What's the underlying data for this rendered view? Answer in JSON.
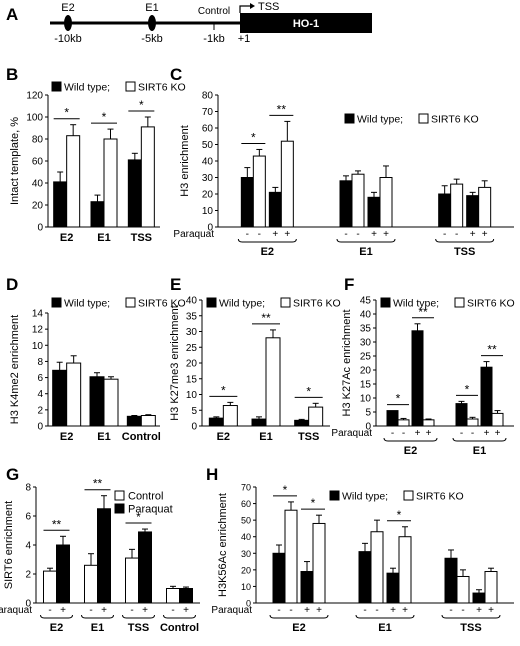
{
  "diagram": {
    "panel_label": "A",
    "elements": [
      "E2",
      "E1",
      "Control"
    ],
    "positions": [
      "-10kb",
      "-5kb",
      "-1kb",
      "+1"
    ],
    "tss_label": "TSS",
    "gene_label": "HO-1"
  },
  "chart_data": [
    {
      "panel": "B",
      "type": "bar",
      "ylabel": "Intact template, %",
      "ylim": [
        0,
        120
      ],
      "yticks": [
        0,
        20,
        40,
        60,
        80,
        100,
        120
      ],
      "legend": [
        "Wild type;",
        "SIRT6 KO"
      ],
      "groups": [
        {
          "label": "E2",
          "bars": [
            {
              "value": 41,
              "err": 9,
              "fill": "black"
            },
            {
              "value": 83,
              "err": 10,
              "fill": "white"
            }
          ]
        },
        {
          "label": "E1",
          "bars": [
            {
              "value": 23,
              "err": 6,
              "fill": "black"
            },
            {
              "value": 80,
              "err": 9,
              "fill": "white"
            }
          ]
        },
        {
          "label": "TSS",
          "bars": [
            {
              "value": 61,
              "err": 6,
              "fill": "black"
            },
            {
              "value": 91,
              "err": 9,
              "fill": "white"
            }
          ]
        }
      ],
      "sig": [
        {
          "from": [
            0,
            0
          ],
          "to": [
            0,
            1
          ],
          "text": "*"
        },
        {
          "from": [
            1,
            0
          ],
          "to": [
            1,
            1
          ],
          "text": "*"
        },
        {
          "from": [
            2,
            0
          ],
          "to": [
            2,
            1
          ],
          "text": "*"
        }
      ]
    },
    {
      "panel": "C",
      "type": "bar",
      "ylabel": "H3 enrichment",
      "ylim": [
        0,
        80
      ],
      "yticks": [
        0,
        10,
        20,
        30,
        40,
        50,
        60,
        70,
        80
      ],
      "legend": [
        "Wild type;",
        "SIRT6 KO"
      ],
      "treatment_label": "Paraquat",
      "groups": [
        {
          "label": "E2",
          "bars": [
            {
              "value": 30,
              "err": 6,
              "fill": "black",
              "treat": "-"
            },
            {
              "value": 43,
              "err": 4,
              "fill": "white",
              "treat": "-"
            },
            {
              "value": 21,
              "err": 3,
              "fill": "black",
              "treat": "+"
            },
            {
              "value": 52,
              "err": 12,
              "fill": "white",
              "treat": "+"
            }
          ]
        },
        {
          "label": "E1",
          "bars": [
            {
              "value": 28,
              "err": 3,
              "fill": "black",
              "treat": "-"
            },
            {
              "value": 32,
              "err": 2,
              "fill": "white",
              "treat": "-"
            },
            {
              "value": 18,
              "err": 3,
              "fill": "black",
              "treat": "+"
            },
            {
              "value": 30,
              "err": 7,
              "fill": "white",
              "treat": "+"
            }
          ]
        },
        {
          "label": "TSS",
          "bars": [
            {
              "value": 20,
              "err": 5,
              "fill": "black",
              "treat": "-"
            },
            {
              "value": 26,
              "err": 3,
              "fill": "white",
              "treat": "-"
            },
            {
              "value": 19,
              "err": 2,
              "fill": "black",
              "treat": "+"
            },
            {
              "value": 24,
              "err": 4,
              "fill": "white",
              "treat": "+"
            }
          ]
        }
      ],
      "sig": [
        {
          "from": [
            0,
            0
          ],
          "to": [
            0,
            1
          ],
          "text": "*"
        },
        {
          "from": [
            0,
            2
          ],
          "to": [
            0,
            3
          ],
          "text": "**"
        }
      ]
    },
    {
      "panel": "D",
      "type": "bar",
      "ylabel": "H3 K4me2  enrichment",
      "ylim": [
        0,
        14
      ],
      "yticks": [
        0,
        2,
        4,
        6,
        8,
        10,
        12,
        14
      ],
      "legend": [
        "Wild type;",
        "SIRT6 KO"
      ],
      "groups": [
        {
          "label": "E2",
          "bars": [
            {
              "value": 6.9,
              "err": 1.0,
              "fill": "black"
            },
            {
              "value": 7.8,
              "err": 0.9,
              "fill": "white"
            }
          ]
        },
        {
          "label": "E1",
          "bars": [
            {
              "value": 6.1,
              "err": 0.5,
              "fill": "black"
            },
            {
              "value": 5.8,
              "err": 0.3,
              "fill": "white"
            }
          ]
        },
        {
          "label": "Control",
          "bars": [
            {
              "value": 1.2,
              "err": 0.1,
              "fill": "black"
            },
            {
              "value": 1.3,
              "err": 0.1,
              "fill": "white"
            }
          ]
        }
      ],
      "sig": []
    },
    {
      "panel": "E",
      "type": "bar",
      "ylabel": "H3 K27me3  enrichment",
      "ylim": [
        0,
        40
      ],
      "yticks": [
        0,
        5,
        10,
        15,
        20,
        25,
        30,
        35,
        40
      ],
      "legend": [
        "Wild type;",
        "SIRT6 KO"
      ],
      "groups": [
        {
          "label": "E2",
          "bars": [
            {
              "value": 2.5,
              "err": 0.4,
              "fill": "black"
            },
            {
              "value": 6.5,
              "err": 1.0,
              "fill": "white"
            }
          ]
        },
        {
          "label": "E1",
          "bars": [
            {
              "value": 2.2,
              "err": 0.7,
              "fill": "black"
            },
            {
              "value": 28,
              "err": 2.5,
              "fill": "white"
            }
          ]
        },
        {
          "label": "TSS",
          "bars": [
            {
              "value": 1.8,
              "err": 0.3,
              "fill": "black"
            },
            {
              "value": 6,
              "err": 1.2,
              "fill": "white"
            }
          ]
        }
      ],
      "sig": [
        {
          "from": [
            0,
            0
          ],
          "to": [
            0,
            1
          ],
          "text": "*"
        },
        {
          "from": [
            1,
            0
          ],
          "to": [
            1,
            1
          ],
          "text": "**"
        },
        {
          "from": [
            2,
            0
          ],
          "to": [
            2,
            1
          ],
          "text": "*"
        }
      ]
    },
    {
      "panel": "F",
      "type": "bar",
      "ylabel": "H3 K27Ac  enrichment",
      "ylim": [
        0,
        45
      ],
      "yticks": [
        0,
        5,
        10,
        15,
        20,
        25,
        30,
        35,
        40,
        45
      ],
      "legend": [
        "Wild type;",
        "SIRT6 KO"
      ],
      "treatment_label": "Paraquat",
      "groups": [
        {
          "label": "E2",
          "bars": [
            {
              "value": 5.5,
              "err": 0,
              "fill": "black",
              "treat": "-"
            },
            {
              "value": 2.2,
              "err": 0.5,
              "fill": "white",
              "treat": "-"
            },
            {
              "value": 34,
              "err": 2.5,
              "fill": "black",
              "treat": "+"
            },
            {
              "value": 2.2,
              "err": 0.3,
              "fill": "white",
              "treat": "+"
            }
          ]
        },
        {
          "label": "E1",
          "bars": [
            {
              "value": 8,
              "err": 0.8,
              "fill": "black",
              "treat": "-"
            },
            {
              "value": 2.5,
              "err": 0.6,
              "fill": "white",
              "treat": "-"
            },
            {
              "value": 21,
              "err": 2,
              "fill": "black",
              "treat": "+"
            },
            {
              "value": 4.5,
              "err": 1,
              "fill": "white",
              "treat": "+"
            }
          ]
        }
      ],
      "sig": [
        {
          "from": [
            0,
            0
          ],
          "to": [
            0,
            1
          ],
          "text": "*"
        },
        {
          "from": [
            0,
            2
          ],
          "to": [
            0,
            3
          ],
          "text": "**"
        },
        {
          "from": [
            1,
            0
          ],
          "to": [
            1,
            1
          ],
          "text": "*"
        },
        {
          "from": [
            1,
            2
          ],
          "to": [
            1,
            3
          ],
          "text": "**"
        }
      ]
    },
    {
      "panel": "G",
      "type": "bar",
      "ylabel": "SIRT6  enrichment",
      "ylim": [
        0,
        8
      ],
      "yticks": [
        0,
        2,
        4,
        6,
        8
      ],
      "legend": [
        "Control",
        "Paraquat"
      ],
      "treatment_label": "Paraquat",
      "groups": [
        {
          "label": "E2",
          "bars": [
            {
              "value": 2.2,
              "err": 0.2,
              "fill": "white",
              "treat": "-"
            },
            {
              "value": 4,
              "err": 0.6,
              "fill": "black",
              "treat": "+"
            }
          ]
        },
        {
          "label": "E1",
          "bars": [
            {
              "value": 2.6,
              "err": 0.8,
              "fill": "white",
              "treat": "-"
            },
            {
              "value": 6.5,
              "err": 0.9,
              "fill": "black",
              "treat": "+"
            }
          ]
        },
        {
          "label": "TSS",
          "bars": [
            {
              "value": 3.1,
              "err": 0.6,
              "fill": "white",
              "treat": "-"
            },
            {
              "value": 4.9,
              "err": 0.2,
              "fill": "black",
              "treat": "+"
            }
          ]
        },
        {
          "label": "Control",
          "bars": [
            {
              "value": 1,
              "err": 0.15,
              "fill": "white",
              "treat": "-"
            },
            {
              "value": 1,
              "err": 0.1,
              "fill": "black",
              "treat": "+"
            }
          ]
        }
      ],
      "sig": [
        {
          "from": [
            0,
            0
          ],
          "to": [
            0,
            1
          ],
          "text": "**"
        },
        {
          "from": [
            1,
            0
          ],
          "to": [
            1,
            1
          ],
          "text": "**"
        },
        {
          "from": [
            2,
            0
          ],
          "to": [
            2,
            1
          ],
          "text": "*"
        }
      ]
    },
    {
      "panel": "H",
      "type": "bar",
      "ylabel": "H3K56Ac enrichment",
      "ylim": [
        0,
        70
      ],
      "yticks": [
        0,
        10,
        20,
        30,
        40,
        50,
        60,
        70
      ],
      "legend": [
        "Wild type;",
        "SIRT6 KO"
      ],
      "treatment_label": "Paraquat",
      "groups": [
        {
          "label": "E2",
          "bars": [
            {
              "value": 30,
              "err": 5,
              "fill": "black",
              "treat": "-"
            },
            {
              "value": 56,
              "err": 5,
              "fill": "white",
              "treat": "-"
            },
            {
              "value": 19,
              "err": 6,
              "fill": "black",
              "treat": "+"
            },
            {
              "value": 48,
              "err": 5,
              "fill": "white",
              "treat": "+"
            }
          ]
        },
        {
          "label": "E1",
          "bars": [
            {
              "value": 31,
              "err": 5,
              "fill": "black",
              "treat": "-"
            },
            {
              "value": 43,
              "err": 7,
              "fill": "white",
              "treat": "-"
            },
            {
              "value": 18,
              "err": 3,
              "fill": "black",
              "treat": "+"
            },
            {
              "value": 40,
              "err": 6,
              "fill": "white",
              "treat": "+"
            }
          ]
        },
        {
          "label": "TSS",
          "bars": [
            {
              "value": 27,
              "err": 5,
              "fill": "black",
              "treat": "-"
            },
            {
              "value": 16,
              "err": 4,
              "fill": "white",
              "treat": "-"
            },
            {
              "value": 6,
              "err": 2,
              "fill": "black",
              "treat": "+"
            },
            {
              "value": 19,
              "err": 2,
              "fill": "white",
              "treat": "+"
            }
          ]
        }
      ],
      "sig": [
        {
          "from": [
            0,
            0
          ],
          "to": [
            0,
            1
          ],
          "text": "*"
        },
        {
          "from": [
            0,
            2
          ],
          "to": [
            0,
            3
          ],
          "text": "*"
        },
        {
          "from": [
            1,
            2
          ],
          "to": [
            1,
            3
          ],
          "text": "*"
        }
      ]
    }
  ]
}
